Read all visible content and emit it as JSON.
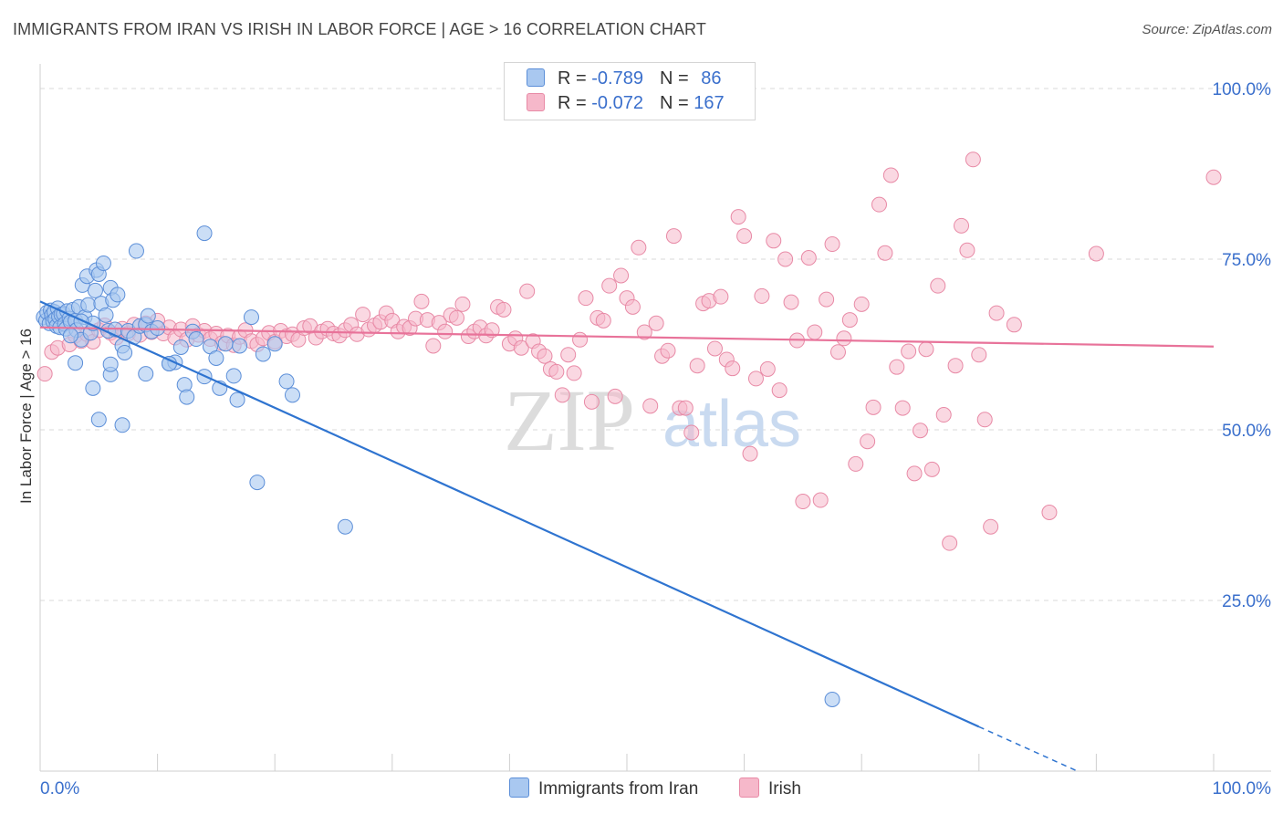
{
  "title": "IMMIGRANTS FROM IRAN VS IRISH IN LABOR FORCE | AGE > 16 CORRELATION CHART",
  "source": "Source: ZipAtlas.com",
  "watermark": {
    "zip": "ZIP",
    "atlas": "atlas"
  },
  "colors": {
    "blue_fill": "#a9c8f0",
    "blue_stroke": "#5b8ed8",
    "blue_line": "#2f74d0",
    "pink_fill": "#f6b8ca",
    "pink_stroke": "#e88aa6",
    "pink_line": "#e8739a",
    "axis_label": "#3a6fcc",
    "grid": "#d9d9d9"
  },
  "legend": {
    "r_label": "R = ",
    "n_label": "N = ",
    "rows": [
      {
        "r": "-0.789",
        "n": "86"
      },
      {
        "r": "-0.072",
        "n": "167"
      }
    ]
  },
  "chart_data": {
    "type": "scatter",
    "title": "IMMIGRANTS FROM IRAN VS IRISH IN LABOR FORCE | AGE > 16 CORRELATION CHART",
    "xlabel": "",
    "ylabel": "In Labor Force | Age > 16",
    "xlim": [
      0,
      100
    ],
    "ylim": [
      0,
      102
    ],
    "x_tick_labels": [
      "0.0%",
      "100.0%"
    ],
    "y_ticks": [
      25,
      50,
      75,
      100
    ],
    "y_tick_labels": [
      "25.0%",
      "50.0%",
      "75.0%",
      "100.0%"
    ],
    "grid": true,
    "legend_position": "top-center",
    "series": [
      {
        "name": "Immigrants from Iran",
        "r": -0.789,
        "n": 86,
        "trend": {
          "x0": 0,
          "y0": 68.8,
          "x1": 80,
          "y1": 6.5,
          "dash_to_x": 100,
          "dash_to_y": -9.0
        },
        "points": [
          [
            0.3,
            66.5
          ],
          [
            0.5,
            66
          ],
          [
            0.6,
            67.2
          ],
          [
            0.8,
            65.6
          ],
          [
            0.9,
            67.5
          ],
          [
            1.0,
            66.8
          ],
          [
            1.1,
            65.9
          ],
          [
            1.2,
            67.3
          ],
          [
            1.3,
            66.2
          ],
          [
            1.4,
            65.2
          ],
          [
            1.5,
            67.8
          ],
          [
            1.6,
            66.6
          ],
          [
            1.7,
            65.0
          ],
          [
            1.8,
            66.9
          ],
          [
            2.0,
            67.0
          ],
          [
            2.1,
            65.5
          ],
          [
            2.2,
            64.8
          ],
          [
            2.3,
            67.4
          ],
          [
            2.5,
            66.3
          ],
          [
            2.6,
            65.8
          ],
          [
            2.8,
            67.6
          ],
          [
            3.0,
            66.0
          ],
          [
            3.1,
            64.6
          ],
          [
            3.3,
            68.0
          ],
          [
            3.5,
            63.2
          ],
          [
            3.6,
            71.2
          ],
          [
            3.8,
            66.5
          ],
          [
            4.0,
            72.5
          ],
          [
            4.1,
            68.3
          ],
          [
            4.3,
            64.2
          ],
          [
            4.5,
            65.6
          ],
          [
            4.7,
            70.4
          ],
          [
            4.8,
            73.4
          ],
          [
            5.0,
            72.8
          ],
          [
            5.2,
            68.5
          ],
          [
            5.4,
            74.4
          ],
          [
            5.6,
            66.8
          ],
          [
            5.8,
            64.5
          ],
          [
            6.0,
            70.8
          ],
          [
            6.2,
            69.0
          ],
          [
            6.4,
            64.7
          ],
          [
            6.6,
            69.8
          ],
          [
            7.0,
            62.3
          ],
          [
            7.2,
            61.3
          ],
          [
            7.5,
            64.5
          ],
          [
            8.0,
            63.6
          ],
          [
            8.2,
            76.2
          ],
          [
            8.5,
            65.2
          ],
          [
            9.0,
            65.4
          ],
          [
            9.2,
            66.7
          ],
          [
            9.5,
            64.4
          ],
          [
            10.0,
            64.9
          ],
          [
            11.0,
            59.7
          ],
          [
            11.5,
            59.9
          ],
          [
            12.0,
            62.1
          ],
          [
            12.3,
            56.6
          ],
          [
            12.5,
            54.8
          ],
          [
            13.0,
            64.4
          ],
          [
            13.3,
            63.3
          ],
          [
            14.0,
            57.8
          ],
          [
            14.5,
            62.2
          ],
          [
            15.0,
            60.5
          ],
          [
            15.3,
            56.1
          ],
          [
            15.8,
            62.6
          ],
          [
            16.5,
            57.9
          ],
          [
            16.8,
            54.4
          ],
          [
            17.0,
            62.3
          ],
          [
            18.0,
            66.5
          ],
          [
            19.0,
            61.1
          ],
          [
            20.0,
            62.6
          ],
          [
            21.0,
            57.1
          ],
          [
            21.5,
            55.1
          ],
          [
            3.0,
            59.8
          ],
          [
            4.5,
            56.1
          ],
          [
            5.0,
            51.5
          ],
          [
            6.0,
            58.1
          ],
          [
            7.0,
            50.7
          ],
          [
            9.0,
            58.2
          ],
          [
            11.0,
            59.7
          ],
          [
            14.0,
            78.8
          ],
          [
            6.0,
            59.6
          ],
          [
            18.5,
            42.3
          ],
          [
            26.0,
            35.8
          ],
          [
            67.5,
            10.5
          ],
          [
            3.5,
            65.9
          ],
          [
            2.6,
            63.8
          ]
        ]
      },
      {
        "name": "Irish",
        "r": -0.072,
        "n": 167,
        "trend": {
          "x0": 0,
          "y0": 65.0,
          "x1": 100,
          "y1": 62.2
        },
        "points": [
          [
            0.4,
            58.2
          ],
          [
            1.0,
            61.4
          ],
          [
            1.5,
            62.0
          ],
          [
            2.0,
            65.5
          ],
          [
            2.5,
            62.5
          ],
          [
            3.0,
            63.8
          ],
          [
            3.5,
            63.0
          ],
          [
            4.0,
            64.0
          ],
          [
            4.5,
            62.9
          ],
          [
            5.0,
            64.6
          ],
          [
            5.5,
            65.3
          ],
          [
            6.0,
            64.2
          ],
          [
            6.5,
            63.5
          ],
          [
            7.0,
            64.8
          ],
          [
            7.5,
            64.1
          ],
          [
            8.0,
            65.4
          ],
          [
            8.5,
            63.9
          ],
          [
            9.0,
            65.6
          ],
          [
            9.5,
            64.3
          ],
          [
            10.0,
            66.0
          ],
          [
            10.5,
            64.1
          ],
          [
            11.0,
            65.0
          ],
          [
            11.5,
            63.5
          ],
          [
            12.0,
            64.7
          ],
          [
            12.5,
            63.2
          ],
          [
            13.0,
            65.2
          ],
          [
            13.5,
            63.9
          ],
          [
            14.0,
            64.5
          ],
          [
            14.5,
            63.3
          ],
          [
            15.0,
            64.1
          ],
          [
            15.5,
            62.7
          ],
          [
            16.0,
            63.8
          ],
          [
            16.5,
            62.4
          ],
          [
            17.0,
            63.6
          ],
          [
            17.5,
            64.6
          ],
          [
            18.0,
            63.0
          ],
          [
            18.5,
            62.5
          ],
          [
            19.0,
            63.4
          ],
          [
            19.5,
            64.2
          ],
          [
            20.0,
            62.9
          ],
          [
            20.5,
            64.5
          ],
          [
            21.0,
            63.7
          ],
          [
            21.5,
            64.0
          ],
          [
            22.0,
            63.2
          ],
          [
            22.5,
            64.9
          ],
          [
            23.0,
            65.2
          ],
          [
            23.5,
            63.5
          ],
          [
            24.0,
            64.4
          ],
          [
            24.5,
            64.8
          ],
          [
            25.0,
            64.1
          ],
          [
            25.5,
            63.8
          ],
          [
            26.0,
            64.6
          ],
          [
            26.5,
            65.4
          ],
          [
            27.0,
            64.0
          ],
          [
            27.5,
            66.9
          ],
          [
            28.0,
            64.7
          ],
          [
            28.5,
            65.3
          ],
          [
            29.0,
            65.8
          ],
          [
            29.5,
            67.1
          ],
          [
            30.0,
            66.0
          ],
          [
            30.5,
            64.4
          ],
          [
            31.0,
            65.1
          ],
          [
            31.5,
            64.9
          ],
          [
            32.0,
            66.3
          ],
          [
            32.5,
            68.8
          ],
          [
            33.0,
            66.1
          ],
          [
            33.5,
            62.3
          ],
          [
            34.0,
            65.7
          ],
          [
            34.5,
            64.4
          ],
          [
            35.0,
            66.8
          ],
          [
            35.5,
            66.4
          ],
          [
            36.0,
            68.4
          ],
          [
            36.5,
            63.7
          ],
          [
            37.0,
            64.4
          ],
          [
            37.5,
            65.0
          ],
          [
            38.0,
            63.8
          ],
          [
            38.5,
            64.6
          ],
          [
            39.0,
            68.0
          ],
          [
            39.5,
            67.6
          ],
          [
            40.0,
            62.6
          ],
          [
            40.5,
            63.4
          ],
          [
            41.0,
            62.0
          ],
          [
            41.5,
            70.3
          ],
          [
            42.0,
            63.0
          ],
          [
            42.5,
            61.5
          ],
          [
            43.0,
            60.8
          ],
          [
            43.5,
            58.9
          ],
          [
            44.0,
            58.5
          ],
          [
            44.5,
            55.1
          ],
          [
            45.0,
            61.0
          ],
          [
            45.5,
            58.3
          ],
          [
            46.0,
            63.2
          ],
          [
            46.5,
            69.3
          ],
          [
            47.0,
            54.1
          ],
          [
            47.5,
            66.4
          ],
          [
            48.0,
            66.0
          ],
          [
            48.5,
            71.1
          ],
          [
            49.0,
            54.9
          ],
          [
            49.5,
            72.6
          ],
          [
            50.0,
            69.3
          ],
          [
            50.5,
            68.0
          ],
          [
            51.0,
            76.7
          ],
          [
            51.5,
            64.3
          ],
          [
            52.0,
            53.5
          ],
          [
            52.5,
            65.6
          ],
          [
            53.0,
            60.8
          ],
          [
            53.5,
            61.6
          ],
          [
            54.0,
            78.4
          ],
          [
            54.5,
            53.2
          ],
          [
            55.0,
            53.2
          ],
          [
            55.5,
            49.6
          ],
          [
            56.0,
            59.4
          ],
          [
            56.5,
            68.5
          ],
          [
            57.0,
            68.9
          ],
          [
            57.5,
            61.9
          ],
          [
            58.0,
            69.5
          ],
          [
            58.5,
            60.3
          ],
          [
            59.0,
            59.0
          ],
          [
            59.5,
            81.2
          ],
          [
            60.0,
            78.4
          ],
          [
            60.5,
            46.5
          ],
          [
            61.0,
            57.5
          ],
          [
            61.5,
            69.6
          ],
          [
            62.0,
            58.9
          ],
          [
            62.5,
            77.7
          ],
          [
            63.0,
            55.8
          ],
          [
            63.5,
            75.0
          ],
          [
            64.0,
            68.7
          ],
          [
            64.5,
            63.1
          ],
          [
            65.0,
            39.5
          ],
          [
            65.5,
            75.2
          ],
          [
            66.0,
            64.3
          ],
          [
            66.5,
            39.7
          ],
          [
            67.0,
            69.1
          ],
          [
            67.5,
            77.2
          ],
          [
            68.0,
            61.4
          ],
          [
            68.5,
            63.4
          ],
          [
            69.0,
            66.1
          ],
          [
            69.5,
            45.0
          ],
          [
            70.0,
            68.4
          ],
          [
            70.5,
            48.3
          ],
          [
            71.0,
            53.3
          ],
          [
            71.5,
            83.0
          ],
          [
            72.0,
            75.9
          ],
          [
            72.5,
            87.3
          ],
          [
            73.0,
            59.2
          ],
          [
            73.5,
            53.2
          ],
          [
            74.0,
            61.5
          ],
          [
            74.5,
            43.6
          ],
          [
            75.0,
            49.9
          ],
          [
            75.5,
            61.8
          ],
          [
            76.0,
            44.2
          ],
          [
            76.5,
            71.1
          ],
          [
            77.0,
            52.2
          ],
          [
            77.5,
            33.4
          ],
          [
            78.0,
            59.4
          ],
          [
            78.5,
            79.9
          ],
          [
            79.0,
            76.3
          ],
          [
            79.5,
            89.6
          ],
          [
            80.0,
            61.0
          ],
          [
            80.5,
            51.5
          ],
          [
            81.0,
            35.8
          ],
          [
            81.5,
            67.1
          ],
          [
            83.0,
            65.4
          ],
          [
            86.0,
            37.9
          ],
          [
            90.0,
            75.8
          ],
          [
            100.0,
            87.0
          ]
        ]
      }
    ]
  },
  "bottom_legend": [
    {
      "label": "Immigrants from Iran"
    },
    {
      "label": "Irish"
    }
  ]
}
